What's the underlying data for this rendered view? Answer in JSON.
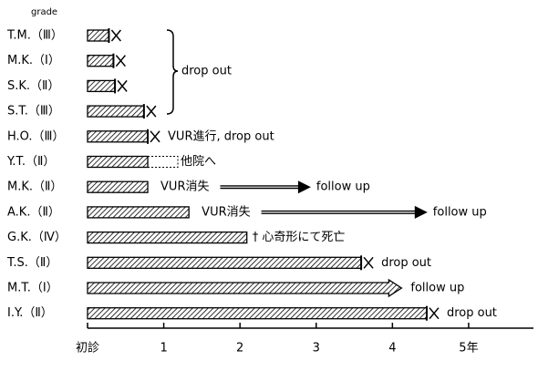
{
  "chart_data": {
    "type": "swimmer",
    "y_label": "grade",
    "categories": [
      "T.M.（Ⅲ）",
      "M.K.（Ⅰ）",
      "S.K.（Ⅱ）",
      "S.T.（Ⅲ）",
      "H.O.（Ⅲ）",
      "Y.T.（Ⅱ）",
      "M.K.（Ⅱ）",
      "A.K.（Ⅱ）",
      "G.K.（Ⅳ）",
      "T.S.（Ⅱ）",
      "M.T.（Ⅰ）",
      "I.Y.（Ⅱ）"
    ],
    "values": [
      0.28,
      0.34,
      0.36,
      0.74,
      0.79,
      0.79,
      0.79,
      1.33,
      2.09,
      3.59,
      4.12,
      4.45
    ],
    "end_markers": [
      "x",
      "x",
      "x",
      "x",
      "x",
      "dotted",
      "none",
      "none",
      "none",
      "x",
      "arrow",
      "x"
    ],
    "notes": [
      null,
      null,
      null,
      null,
      "VUR進行, drop out",
      "他院へ",
      "VUR消失",
      "VUR消失",
      "† 心奇形にて死亡",
      "drop out",
      "follow up",
      "drop out"
    ],
    "arrow_ends": [
      null,
      null,
      null,
      null,
      null,
      null,
      2.93,
      4.46,
      null,
      null,
      null,
      null
    ],
    "arrow_labels": [
      null,
      null,
      null,
      null,
      null,
      null,
      "follow up",
      "follow up",
      null,
      null,
      null,
      null
    ],
    "brace_label": "drop out",
    "xlim": [
      0,
      5.85
    ],
    "xticks": [
      {
        "value": 0,
        "label": "初診"
      },
      1,
      2,
      3,
      4,
      {
        "value": 5,
        "label": "5年"
      }
    ]
  }
}
